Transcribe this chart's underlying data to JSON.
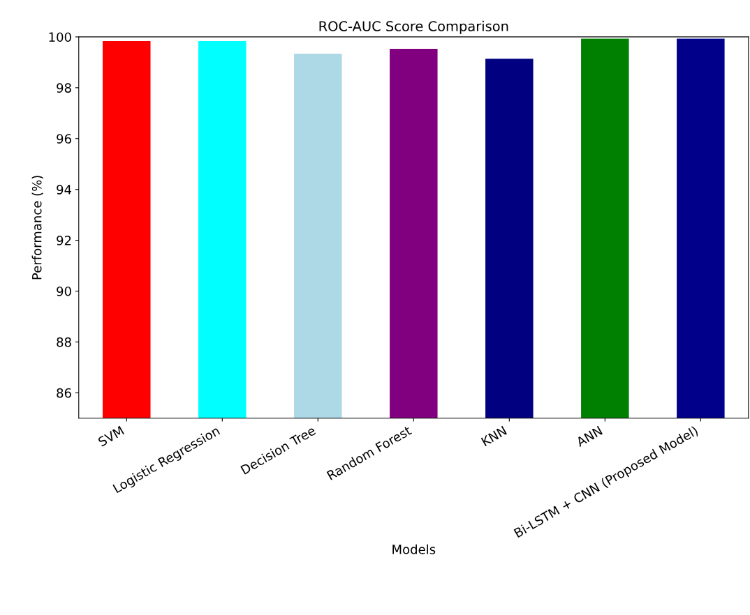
{
  "chart_data": {
    "type": "bar",
    "title": "ROC-AUC Score Comparison",
    "xlabel": "Models",
    "ylabel": "Performance (%)",
    "categories": [
      "SVM",
      "Logistic Regression",
      "Decision Tree",
      "Random Forest",
      "KNN",
      "ANN",
      "Bi-LSTM + CNN (Proposed Model)"
    ],
    "values": [
      99.83,
      99.83,
      99.34,
      99.53,
      99.14,
      99.93,
      99.93
    ],
    "colors": [
      "#ff0000",
      "#00ffff",
      "#add8e6",
      "#800080",
      "#000080",
      "#008000",
      "#00008b"
    ],
    "ylim": [
      85,
      100
    ],
    "yticks": [
      86,
      88,
      90,
      92,
      94,
      96,
      98,
      100
    ],
    "grid": false,
    "legend": false
  }
}
